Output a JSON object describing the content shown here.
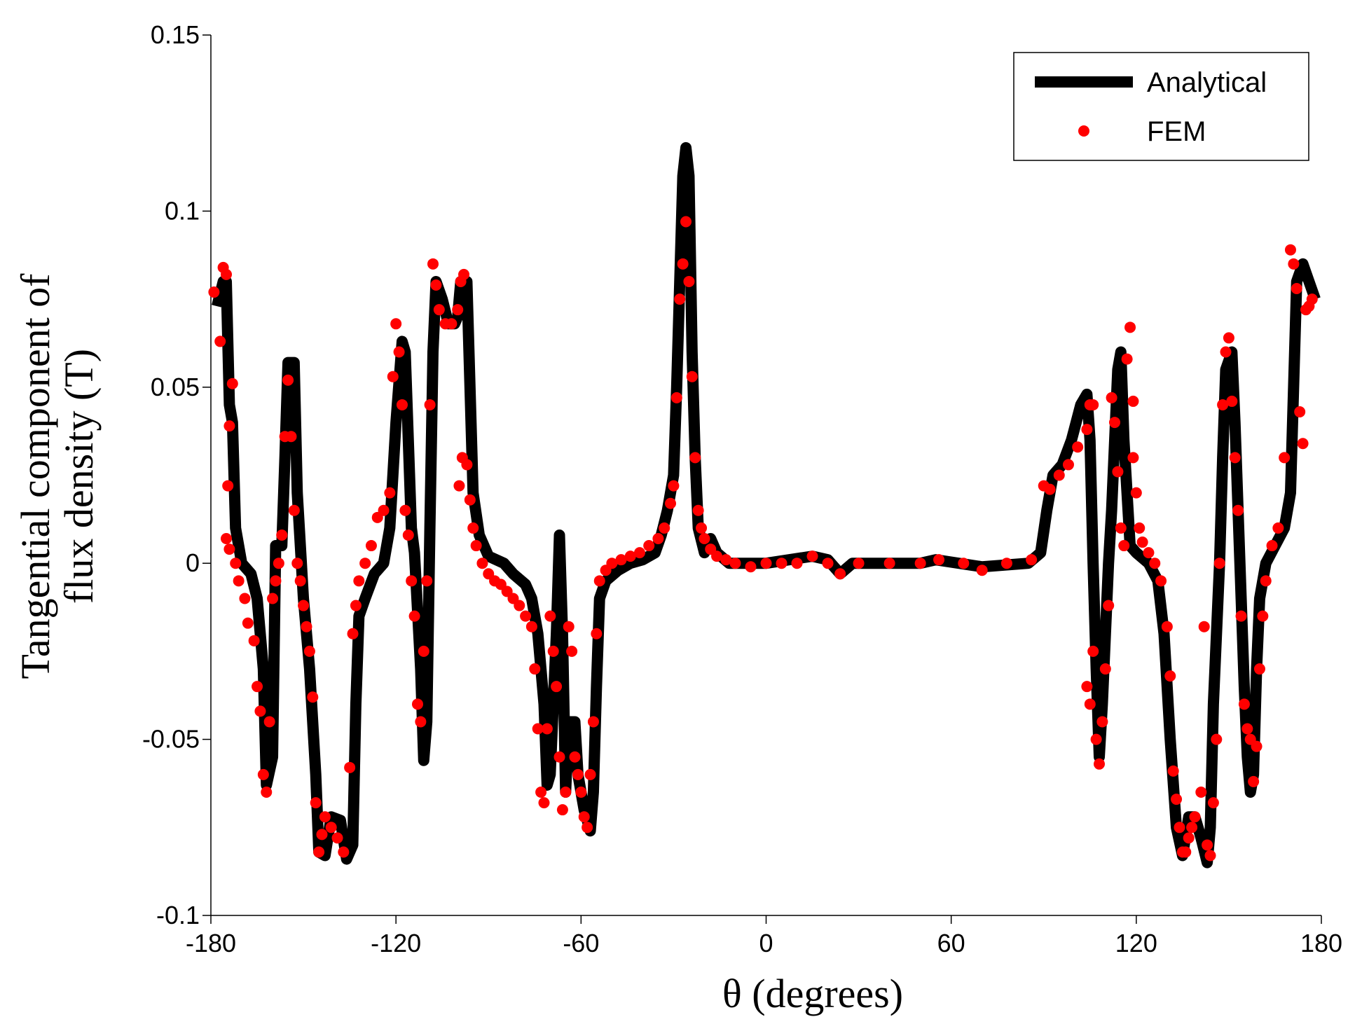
{
  "chart_data": {
    "type": "line",
    "xlabel": "θ  (degrees)",
    "ylabel": [
      "Tangential component of",
      "flux density (T)"
    ],
    "xlim": [
      -180,
      180
    ],
    "xticks": [
      -180,
      -120,
      -60,
      0,
      60,
      120,
      180
    ],
    "ylim": [
      -0.1,
      0.15
    ],
    "yticks": [
      -0.1,
      -0.05,
      0,
      0.05,
      0.1,
      0.15
    ],
    "legend": "upper right",
    "series": [
      {
        "name": "Analytical",
        "type": "line",
        "color": "#000000",
        "x": [
          -178,
          -176,
          -175,
          -174,
          -173,
          -172,
          -170,
          -167,
          -165,
          -163,
          -162,
          -160,
          -159,
          -157,
          -156,
          -155,
          -153,
          -152,
          -151,
          -150,
          -148,
          -146,
          -145,
          -143,
          -141,
          -138,
          -136,
          -134,
          -133,
          -132,
          -130,
          -127,
          -124,
          -122,
          -120,
          -118,
          -117,
          -115,
          -114,
          -112,
          -111,
          -110,
          -109,
          -108,
          -107,
          -105,
          -103,
          -101,
          -100,
          -99,
          -97,
          -96,
          -95,
          -93,
          -90,
          -85,
          -82,
          -78,
          -76,
          -74,
          -72,
          -71,
          -70,
          -69,
          -68,
          -67,
          -66,
          -65,
          -64,
          -62,
          -61,
          -59,
          -57,
          -56,
          -55,
          -54,
          -52,
          -48,
          -44,
          -40,
          -36,
          -34,
          -32,
          -30,
          -29,
          -28,
          -27,
          -26,
          -25,
          -24,
          -23,
          -22,
          -20,
          -18,
          -16,
          -12,
          0,
          15,
          20,
          24,
          28,
          50,
          55,
          70,
          85,
          89,
          91,
          93,
          96,
          99,
          102,
          104,
          105,
          106,
          107,
          108,
          109,
          110,
          111,
          112,
          113,
          114,
          115,
          116,
          117,
          118,
          120,
          124,
          127,
          129,
          131,
          133,
          135,
          137,
          139,
          141,
          143,
          144,
          145,
          146,
          147,
          148,
          149,
          151,
          152,
          153,
          154,
          155,
          156,
          157,
          158,
          159,
          160,
          162,
          165,
          168,
          170,
          171,
          172,
          174,
          176,
          178
        ],
        "values": [
          0.073,
          0.08,
          0.08,
          0.045,
          0.04,
          0.01,
          0.0,
          -0.003,
          -0.01,
          -0.03,
          -0.063,
          -0.055,
          0.005,
          0.005,
          0.03,
          0.057,
          0.057,
          0.02,
          0.005,
          -0.01,
          -0.03,
          -0.06,
          -0.082,
          -0.083,
          -0.072,
          -0.073,
          -0.084,
          -0.08,
          -0.04,
          -0.015,
          -0.01,
          -0.003,
          0.0,
          0.01,
          0.04,
          0.063,
          0.06,
          0.01,
          0.003,
          -0.03,
          -0.056,
          -0.045,
          0.01,
          0.06,
          0.08,
          0.075,
          0.068,
          0.068,
          0.07,
          0.08,
          0.08,
          0.05,
          0.02,
          0.008,
          0.002,
          0.0,
          -0.003,
          -0.006,
          -0.01,
          -0.02,
          -0.04,
          -0.063,
          -0.06,
          -0.04,
          -0.02,
          0.008,
          -0.02,
          -0.065,
          -0.045,
          -0.045,
          -0.06,
          -0.07,
          -0.076,
          -0.065,
          -0.035,
          -0.01,
          -0.005,
          -0.002,
          0.0,
          0.001,
          0.003,
          0.008,
          0.015,
          0.025,
          0.05,
          0.08,
          0.11,
          0.118,
          0.11,
          0.06,
          0.03,
          0.01,
          0.003,
          0.007,
          0.003,
          0.0,
          0.0,
          0.002,
          0.001,
          -0.003,
          0.0,
          0.0,
          0.001,
          -0.001,
          0.0,
          0.003,
          0.015,
          0.025,
          0.028,
          0.035,
          0.045,
          0.048,
          0.035,
          0.0,
          -0.03,
          -0.055,
          -0.04,
          -0.02,
          0.0,
          0.015,
          0.035,
          0.055,
          0.06,
          0.035,
          0.02,
          0.005,
          0.003,
          0.0,
          -0.005,
          -0.02,
          -0.05,
          -0.075,
          -0.083,
          -0.072,
          -0.072,
          -0.078,
          -0.085,
          -0.075,
          -0.04,
          -0.02,
          0.0,
          0.03,
          0.055,
          0.06,
          0.04,
          0.015,
          -0.01,
          -0.035,
          -0.055,
          -0.065,
          -0.06,
          -0.03,
          -0.01,
          0.0,
          0.005,
          0.01,
          0.02,
          0.05,
          0.08,
          0.085,
          0.08,
          0.075
        ]
      },
      {
        "name": "FEM",
        "type": "scatter",
        "color": "#ff0000",
        "x": [
          -179,
          -177,
          -176,
          -175,
          -174.5,
          -174,
          -173,
          -175,
          -174,
          -172,
          -171,
          -169,
          -168,
          -166,
          -165,
          -164,
          -163,
          -162,
          -161,
          -160,
          -159,
          -158,
          -157,
          -156,
          -155,
          -154,
          -153,
          -152,
          -151,
          -150,
          -149,
          -148,
          -147,
          -146,
          -145,
          -144,
          -143,
          -141,
          -139,
          -137,
          -135,
          -134,
          -133,
          -132,
          -130,
          -128,
          -126,
          -124,
          -122,
          -121,
          -120,
          -119,
          -118,
          -117,
          -116,
          -115,
          -114,
          -113,
          -112,
          -111,
          -110,
          -109,
          -108,
          -107,
          -106,
          -104,
          -102,
          -100,
          -99,
          -98,
          -99.5,
          -98.5,
          -97,
          -96,
          -95,
          -94,
          -92,
          -90,
          -88,
          -86,
          -84,
          -82,
          -80,
          -78,
          -76,
          -75,
          -74,
          -73,
          -72,
          -71,
          -70,
          -69,
          -68,
          -67,
          -66,
          -65,
          -64,
          -63,
          -62,
          -61,
          -60,
          -59,
          -58,
          -57,
          -56,
          -55,
          -54,
          -52,
          -50,
          -47,
          -44,
          -41,
          -38,
          -35,
          -33,
          -31,
          -30,
          -29,
          -28,
          -27,
          -26,
          -25,
          -24,
          -23,
          -22,
          -21,
          -20,
          -18,
          -16,
          -13,
          -10,
          -5,
          0,
          5,
          10,
          15,
          20,
          24,
          30,
          40,
          50,
          56,
          64,
          70,
          78,
          86,
          90,
          92,
          95,
          98,
          101,
          104,
          105,
          106,
          104,
          105,
          106,
          107,
          108,
          109,
          110,
          111,
          112,
          113,
          114,
          115,
          116,
          117,
          118,
          119,
          119,
          120,
          121,
          122,
          124,
          126,
          128,
          130,
          131,
          132,
          133,
          134,
          135,
          136,
          137,
          138,
          139,
          141,
          142,
          143,
          144,
          145,
          146,
          147,
          148,
          149,
          150,
          151,
          152,
          153,
          154,
          155,
          156,
          157,
          158,
          159,
          160,
          161,
          162,
          164,
          166,
          168,
          170,
          171,
          172,
          173,
          174,
          175,
          176,
          177
        ],
        "values": [
          0.077,
          0.063,
          0.084,
          0.082,
          0.022,
          0.039,
          0.051,
          0.007,
          0.004,
          0.0,
          -0.005,
          -0.01,
          -0.017,
          -0.022,
          -0.035,
          -0.042,
          -0.06,
          -0.065,
          -0.045,
          -0.01,
          -0.005,
          0.0,
          0.008,
          0.036,
          0.052,
          0.036,
          0.015,
          0.0,
          -0.005,
          -0.012,
          -0.018,
          -0.025,
          -0.038,
          -0.068,
          -0.082,
          -0.077,
          -0.072,
          -0.075,
          -0.078,
          -0.082,
          -0.058,
          -0.02,
          -0.012,
          -0.005,
          0.0,
          0.005,
          0.013,
          0.015,
          0.02,
          0.053,
          0.068,
          0.06,
          0.045,
          0.015,
          0.008,
          -0.005,
          -0.015,
          -0.04,
          -0.045,
          -0.025,
          -0.005,
          0.045,
          0.085,
          0.079,
          0.072,
          0.068,
          0.068,
          0.072,
          0.08,
          0.082,
          0.022,
          0.03,
          0.028,
          0.018,
          0.01,
          0.005,
          0.0,
          -0.003,
          -0.005,
          -0.006,
          -0.008,
          -0.01,
          -0.012,
          -0.015,
          -0.018,
          -0.03,
          -0.047,
          -0.065,
          -0.068,
          -0.047,
          -0.015,
          -0.025,
          -0.035,
          -0.055,
          -0.07,
          -0.065,
          -0.018,
          -0.025,
          -0.055,
          -0.06,
          -0.065,
          -0.072,
          -0.075,
          -0.06,
          -0.045,
          -0.02,
          -0.005,
          -0.002,
          0.0,
          0.001,
          0.002,
          0.003,
          0.005,
          0.007,
          0.01,
          0.017,
          0.022,
          0.047,
          0.075,
          0.085,
          0.097,
          0.08,
          0.053,
          0.03,
          0.015,
          0.01,
          0.007,
          0.004,
          0.002,
          0.001,
          0.0,
          -0.001,
          0.0,
          0.0,
          0.0,
          0.002,
          0.0,
          -0.003,
          0.0,
          0.0,
          0.0,
          0.001,
          0.0,
          -0.002,
          0.0,
          0.001,
          0.022,
          0.021,
          0.025,
          0.028,
          0.033,
          0.038,
          0.045,
          0.045,
          -0.035,
          -0.04,
          -0.025,
          -0.05,
          -0.057,
          -0.045,
          -0.03,
          -0.012,
          0.047,
          0.04,
          0.026,
          0.01,
          0.005,
          0.058,
          0.067,
          0.046,
          0.03,
          0.02,
          0.01,
          0.006,
          0.003,
          0.0,
          -0.005,
          -0.018,
          -0.032,
          -0.059,
          -0.067,
          -0.075,
          -0.082,
          -0.082,
          -0.078,
          -0.075,
          -0.072,
          -0.065,
          -0.018,
          -0.08,
          -0.083,
          -0.068,
          -0.05,
          0.0,
          0.045,
          0.06,
          0.064,
          0.046,
          0.03,
          0.015,
          -0.015,
          -0.04,
          -0.047,
          -0.05,
          -0.062,
          -0.052,
          -0.03,
          -0.015,
          -0.005,
          0.005,
          0.01,
          0.03,
          0.089,
          0.085,
          0.078,
          0.043,
          0.034,
          0.072,
          0.073,
          0.075
        ]
      }
    ]
  }
}
